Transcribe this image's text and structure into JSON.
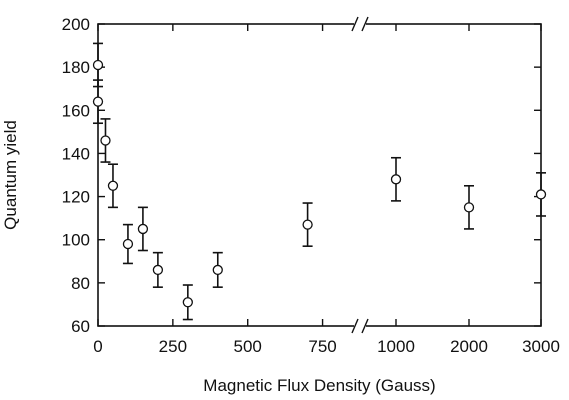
{
  "chart_data": {
    "type": "scatter",
    "title": "",
    "xlabel": "Magnetic Flux Density (Gauss)",
    "ylabel": "Quantum yield",
    "ylim": [
      60,
      200
    ],
    "y_ticks": [
      60,
      80,
      100,
      120,
      140,
      160,
      180,
      200
    ],
    "x_segments": [
      {
        "range": [
          0,
          875
        ],
        "ticks": [
          0,
          250,
          500,
          750
        ]
      },
      {
        "range": [
          875,
          3000
        ],
        "ticks": [
          1000,
          2000,
          3000
        ]
      }
    ],
    "axis_break": 875,
    "grid": false,
    "legend": "none",
    "error_bars": true,
    "series": [
      {
        "x": [
          0,
          0,
          25,
          50,
          100,
          150,
          200,
          300,
          400,
          700,
          1000,
          2000,
          3000
        ],
        "y": [
          181,
          164,
          146,
          125,
          98,
          105,
          86,
          71,
          86,
          107,
          128,
          115,
          121
        ],
        "err": [
          10,
          10,
          10,
          10,
          9,
          10,
          8,
          8,
          8,
          10,
          10,
          10,
          10
        ]
      }
    ]
  }
}
